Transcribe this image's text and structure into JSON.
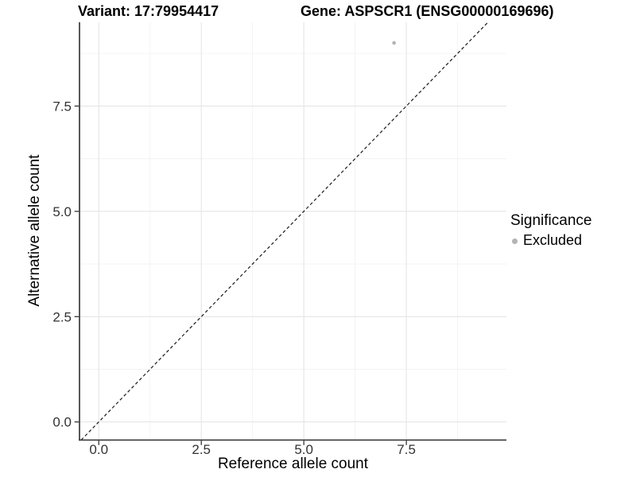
{
  "chart_data": {
    "type": "scatter",
    "title_left": "Variant: 17:79954417",
    "title_right": "Gene: ASPSCR1 (ENSG00000169696)",
    "xlabel": "Reference allele count",
    "ylabel": "Alternative allele count",
    "xlim": [
      -0.47,
      9.94
    ],
    "ylim": [
      -0.43,
      9.49
    ],
    "xticks": {
      "values": [
        0,
        2.5,
        5,
        7.5
      ],
      "labels": [
        "0.0",
        "2.5",
        "5.0",
        "7.5"
      ]
    },
    "yticks": {
      "values": [
        0,
        2.5,
        5,
        7.5
      ],
      "labels": [
        "0.0",
        "2.5",
        "5.0",
        "7.5"
      ]
    },
    "grid": {
      "major": true,
      "minor": true,
      "major_color": "#e5e5e5",
      "minor_color": "#f2f2f2"
    },
    "series": [
      {
        "name": "Excluded",
        "color": "#b3b3b3",
        "points": [
          {
            "x": 7.2,
            "y": 9.0
          }
        ]
      }
    ],
    "reference_line": {
      "type": "identity",
      "slope": 1,
      "intercept": 0,
      "style": "dashed",
      "color": "#1a1a1a"
    },
    "legend": {
      "title": "Significance",
      "position": "right",
      "items": [
        {
          "label": "Excluded",
          "color": "#b3b3b3"
        }
      ]
    }
  }
}
